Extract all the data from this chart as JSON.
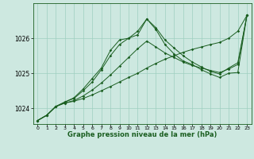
{
  "xlabel": "Graphe pression niveau de la mer (hPa)",
  "xlim": [
    -0.5,
    23.5
  ],
  "ylim": [
    1023.55,
    1027.0
  ],
  "yticks": [
    1024,
    1025,
    1026
  ],
  "xticks": [
    0,
    1,
    2,
    3,
    4,
    5,
    6,
    7,
    8,
    9,
    10,
    11,
    12,
    13,
    14,
    15,
    16,
    17,
    18,
    19,
    20,
    21,
    22,
    23
  ],
  "bg_color": "#cde8e0",
  "grid_color": "#9ecfbf",
  "line_color": "#1a5e20",
  "series": [
    [
      1023.65,
      1023.8,
      1024.05,
      1024.15,
      1024.2,
      1024.28,
      1024.38,
      1024.5,
      1024.62,
      1024.75,
      1024.88,
      1025.0,
      1025.15,
      1025.28,
      1025.4,
      1025.5,
      1025.6,
      1025.68,
      1025.75,
      1025.82,
      1025.88,
      1026.0,
      1026.2,
      1026.65
    ],
    [
      1023.65,
      1023.8,
      1024.05,
      1024.15,
      1024.22,
      1024.35,
      1024.52,
      1024.72,
      1024.95,
      1025.2,
      1025.45,
      1025.7,
      1025.92,
      1025.75,
      1025.58,
      1025.45,
      1025.32,
      1025.22,
      1025.15,
      1025.08,
      1025.02,
      1025.12,
      1025.25,
      1026.65
    ],
    [
      1023.65,
      1023.8,
      1024.05,
      1024.18,
      1024.28,
      1024.5,
      1024.75,
      1025.1,
      1025.5,
      1025.82,
      1026.0,
      1026.2,
      1026.55,
      1026.3,
      1025.95,
      1025.72,
      1025.5,
      1025.32,
      1025.18,
      1025.05,
      1024.98,
      1025.15,
      1025.3,
      1026.65
    ],
    [
      1023.65,
      1023.8,
      1024.05,
      1024.18,
      1024.3,
      1024.55,
      1024.85,
      1025.15,
      1025.65,
      1025.95,
      1026.0,
      1026.1,
      1026.55,
      1026.25,
      1025.82,
      1025.55,
      1025.35,
      1025.25,
      1025.1,
      1024.98,
      1024.88,
      1025.0,
      1025.02,
      1026.65
    ]
  ]
}
